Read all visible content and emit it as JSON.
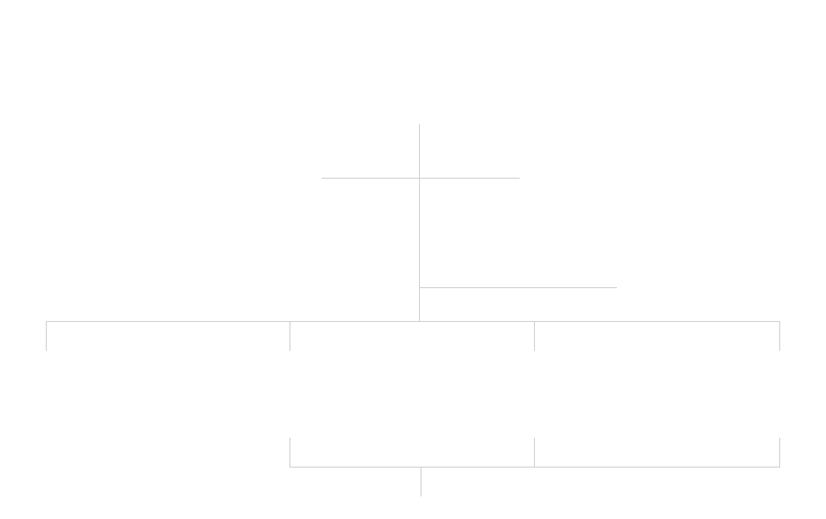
{
  "diagram": {
    "line_color": "#cccccc",
    "background_color": "#ffffff"
  }
}
